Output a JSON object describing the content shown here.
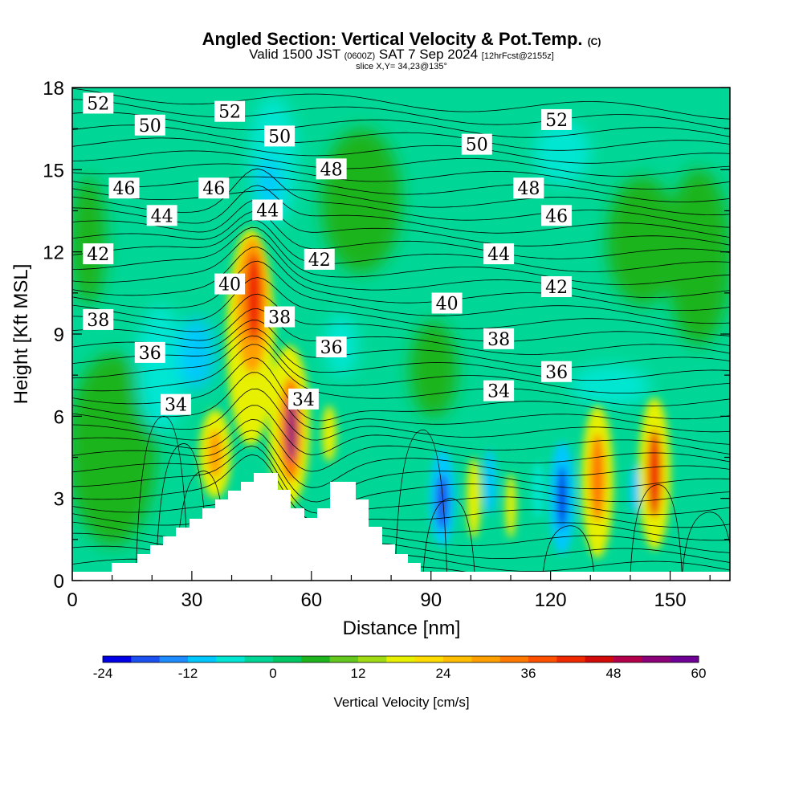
{
  "title": {
    "main": "Angled Section: Vertical Velocity & Pot.Temp.",
    "main_tag": "(C)",
    "valid_a": "Valid 1500 JST",
    "valid_b": "(0600Z)",
    "valid_c": "SAT 7 Sep 2024",
    "valid_d": "[12hrFcst@2155z]",
    "slice": "slice X,Y= 34,23@135°"
  },
  "chart_data": {
    "type": "heatmap",
    "xlabel": "Distance [nm]",
    "ylabel": "Height [Kft MSL]",
    "xlim": [
      0,
      165
    ],
    "ylim": [
      0,
      18
    ],
    "xticks": [
      0,
      30,
      60,
      90,
      120,
      150
    ],
    "yticks": [
      0,
      3,
      6,
      9,
      12,
      15,
      18
    ],
    "colorbar": {
      "label": "Vertical Velocity [cm/s]",
      "range": [
        -24,
        60
      ],
      "ticks": [
        -24,
        -12,
        0,
        12,
        24,
        36,
        48,
        60
      ],
      "colors": [
        "#0000e6",
        "#1c50f0",
        "#1e8cff",
        "#00c8ff",
        "#00e6d2",
        "#00d796",
        "#00c864",
        "#1eb41e",
        "#64c81e",
        "#a0dc14",
        "#e6f000",
        "#ffdc00",
        "#ffbe00",
        "#ffa000",
        "#ff7800",
        "#ff5000",
        "#f02800",
        "#d20a0a",
        "#b4004b",
        "#8c0078",
        "#6e0096"
      ]
    },
    "isentrope_labels": [
      {
        "text": "52",
        "x": 6.5,
        "y": 17.4
      },
      {
        "text": "50",
        "x": 19.5,
        "y": 16.6
      },
      {
        "text": "52",
        "x": 39.5,
        "y": 17.1
      },
      {
        "text": "50",
        "x": 52,
        "y": 16.2
      },
      {
        "text": "52",
        "x": 121.5,
        "y": 16.8
      },
      {
        "text": "50",
        "x": 101.5,
        "y": 15.9
      },
      {
        "text": "48",
        "x": 65,
        "y": 15.0
      },
      {
        "text": "48",
        "x": 114.5,
        "y": 14.3
      },
      {
        "text": "46",
        "x": 13,
        "y": 14.3
      },
      {
        "text": "46",
        "x": 35.5,
        "y": 14.3
      },
      {
        "text": "44",
        "x": 22.5,
        "y": 13.3
      },
      {
        "text": "44",
        "x": 49,
        "y": 13.5
      },
      {
        "text": "46",
        "x": 121.5,
        "y": 13.3
      },
      {
        "text": "42",
        "x": 6.5,
        "y": 11.9
      },
      {
        "text": "42",
        "x": 62,
        "y": 11.7
      },
      {
        "text": "44",
        "x": 107,
        "y": 11.9
      },
      {
        "text": "40",
        "x": 39.5,
        "y": 10.8
      },
      {
        "text": "42",
        "x": 121.5,
        "y": 10.7
      },
      {
        "text": "40",
        "x": 94,
        "y": 10.1
      },
      {
        "text": "38",
        "x": 6.5,
        "y": 9.5
      },
      {
        "text": "38",
        "x": 52,
        "y": 9.6
      },
      {
        "text": "38",
        "x": 107,
        "y": 8.8
      },
      {
        "text": "36",
        "x": 19.5,
        "y": 8.3
      },
      {
        "text": "36",
        "x": 65,
        "y": 8.5
      },
      {
        "text": "36",
        "x": 121.5,
        "y": 7.6
      },
      {
        "text": "34",
        "x": 26,
        "y": 6.4
      },
      {
        "text": "34",
        "x": 58,
        "y": 6.6
      },
      {
        "text": "34",
        "x": 107,
        "y": 6.9
      }
    ]
  }
}
